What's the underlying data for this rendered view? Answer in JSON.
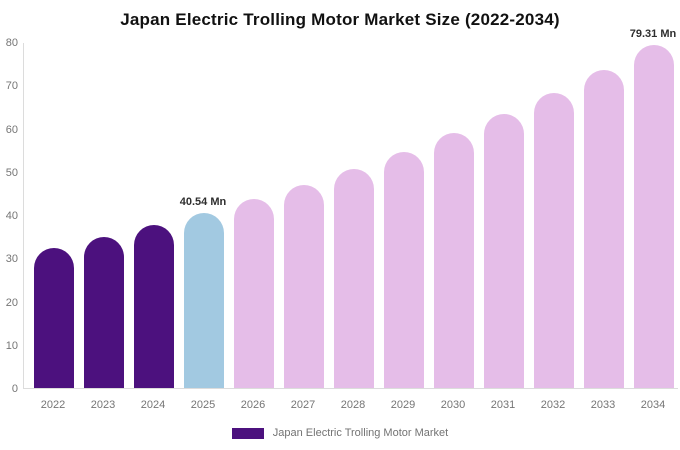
{
  "chart_data": {
    "type": "bar",
    "title": "Japan Electric Trolling Motor Market Size (2022-2034)",
    "categories": [
      "2022",
      "2023",
      "2024",
      "2025",
      "2026",
      "2027",
      "2028",
      "2029",
      "2030",
      "2031",
      "2032",
      "2033",
      "2034"
    ],
    "values": [
      32.41,
      34.92,
      37.63,
      40.54,
      43.68,
      47.06,
      50.7,
      54.63,
      58.86,
      63.41,
      68.32,
      73.61,
      79.31
    ],
    "unit": "Mn",
    "bar_colors": [
      "#4C117E",
      "#4C117E",
      "#4C117E",
      "#A2C9E1",
      "#E5BDE8",
      "#E5BDE8",
      "#E5BDE8",
      "#E5BDE8",
      "#E5BDE8",
      "#E5BDE8",
      "#E5BDE8",
      "#E5BDE8",
      "#E5BDE8"
    ],
    "data_labels": [
      {
        "category": "2025",
        "text": "40.54 Mn"
      },
      {
        "category": "2034",
        "text": "79.31 Mn"
      }
    ],
    "ylim": [
      0,
      80
    ],
    "yticks": [
      0,
      10,
      20,
      30,
      40,
      50,
      60,
      70,
      80
    ],
    "grid": false,
    "legend": {
      "position": "bottom",
      "label": "Japan Electric Trolling Motor Market",
      "color": "#4C117E"
    },
    "colors_meta": {
      "historical_bar": "#4C117E",
      "current_year_bar": "#A2C9E1",
      "forecast_bar": "#E5BDE8",
      "axis_line": "#dcdcdc",
      "tick_text": "#757575",
      "title_text": "#111111"
    }
  }
}
